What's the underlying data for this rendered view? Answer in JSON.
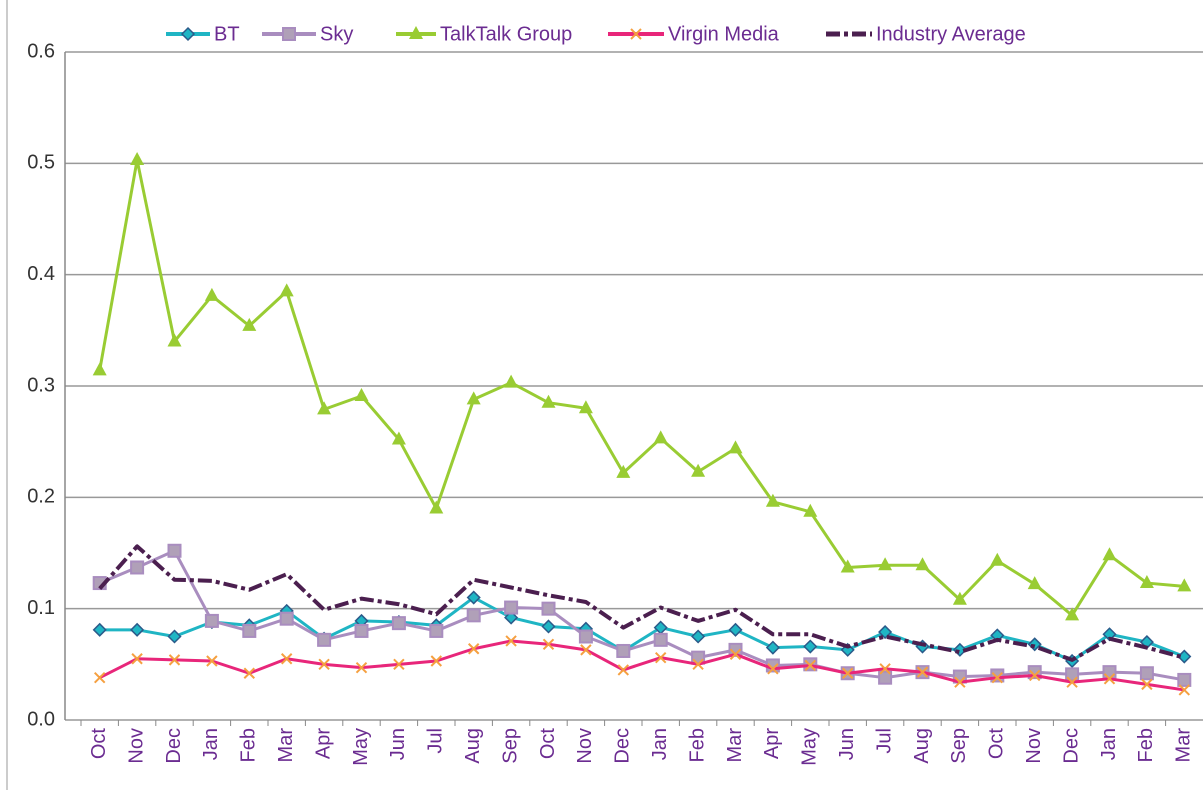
{
  "chart_data": {
    "type": "line",
    "categories": [
      "Oct",
      "Nov",
      "Dec",
      "Jan",
      "Feb",
      "Mar",
      "Apr",
      "May",
      "Jun",
      "Jul",
      "Aug",
      "Sep",
      "Oct",
      "Nov",
      "Dec",
      "Jan",
      "Feb",
      "Mar",
      "Apr",
      "May",
      "Jun",
      "Jul",
      "Aug",
      "Sep",
      "Oct",
      "Nov",
      "Dec",
      "Jan",
      "Feb",
      "Mar"
    ],
    "series": [
      {
        "name": "BT",
        "color": "#1fb5c4",
        "marker": "diamond",
        "values": [
          0.081,
          0.081,
          0.075,
          0.088,
          0.085,
          0.098,
          0.073,
          0.089,
          0.088,
          0.085,
          0.11,
          0.092,
          0.084,
          0.082,
          0.062,
          0.083,
          0.075,
          0.081,
          0.065,
          0.066,
          0.063,
          0.079,
          0.066,
          0.063,
          0.076,
          0.068,
          0.053,
          0.077,
          0.07,
          0.057
        ]
      },
      {
        "name": "Sky",
        "color": "#a98dbf",
        "marker": "square",
        "values": [
          0.123,
          0.137,
          0.152,
          0.089,
          0.08,
          0.091,
          0.072,
          0.08,
          0.087,
          0.08,
          0.094,
          0.101,
          0.1,
          0.075,
          0.062,
          0.072,
          0.056,
          0.063,
          0.049,
          0.05,
          0.042,
          0.038,
          0.043,
          0.039,
          0.04,
          0.043,
          0.041,
          0.043,
          0.042,
          0.036
        ]
      },
      {
        "name": "TalkTalk Group",
        "color": "#99cc33",
        "marker": "triangle",
        "values": [
          0.314,
          0.503,
          0.34,
          0.381,
          0.354,
          0.385,
          0.279,
          0.291,
          0.252,
          0.19,
          0.288,
          0.303,
          0.285,
          0.28,
          0.222,
          0.253,
          0.223,
          0.244,
          0.196,
          0.187,
          0.137,
          0.139,
          0.139,
          0.108,
          0.143,
          0.122,
          0.094,
          0.148,
          0.123,
          0.12
        ]
      },
      {
        "name": "Virgin Media",
        "color": "#e8267a",
        "marker": "x",
        "values": [
          0.038,
          0.055,
          0.054,
          0.053,
          0.042,
          0.055,
          0.05,
          0.047,
          0.05,
          0.053,
          0.064,
          0.071,
          0.068,
          0.063,
          0.045,
          0.056,
          0.05,
          0.059,
          0.046,
          0.049,
          0.042,
          0.046,
          0.043,
          0.034,
          0.038,
          0.04,
          0.034,
          0.037,
          0.032,
          0.027
        ]
      },
      {
        "name": "Industry Average",
        "color": "#4b1f4f",
        "marker": "dash",
        "values": [
          0.118,
          0.156,
          0.126,
          0.125,
          0.117,
          0.131,
          0.099,
          0.109,
          0.104,
          0.095,
          0.126,
          0.119,
          0.112,
          0.106,
          0.083,
          0.101,
          0.089,
          0.099,
          0.077,
          0.077,
          0.066,
          0.075,
          0.068,
          0.061,
          0.072,
          0.066,
          0.054,
          0.073,
          0.065,
          0.056
        ]
      }
    ],
    "ylim": [
      0,
      0.6
    ],
    "yticks": [
      {
        "value": 0,
        "label": "0.0"
      },
      0.1,
      0.2,
      0.3,
      0.4,
      0.5,
      0.6
    ],
    "grid": true,
    "legend": "top"
  }
}
